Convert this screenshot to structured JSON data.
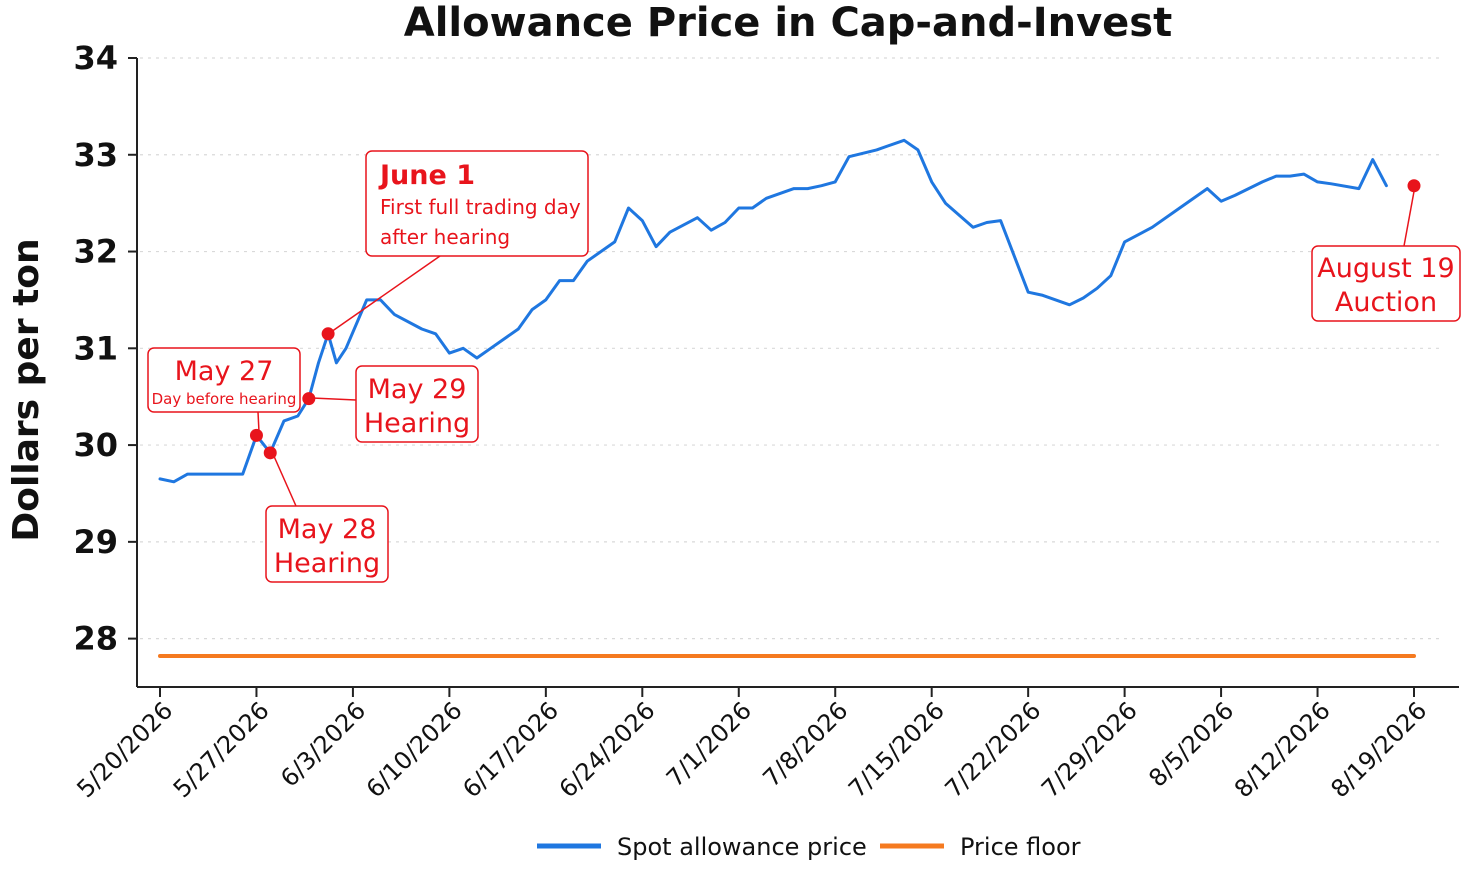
{
  "chart_data": {
    "type": "line",
    "title": "Allowance Price in Cap-and-Invest",
    "xlabel": "",
    "ylabel": "Dollars per ton",
    "ylim": [
      27.5,
      34.0
    ],
    "yticks": [
      28,
      29,
      30,
      31,
      32,
      33,
      34
    ],
    "xrange_days": [
      0,
      91
    ],
    "xticks": [
      {
        "label": "5/20/2026",
        "day": 0
      },
      {
        "label": "5/27/2026",
        "day": 7
      },
      {
        "label": "6/3/2026",
        "day": 14
      },
      {
        "label": "6/10/2026",
        "day": 21
      },
      {
        "label": "6/17/2026",
        "day": 28
      },
      {
        "label": "6/24/2026",
        "day": 35
      },
      {
        "label": "7/1/2026",
        "day": 42
      },
      {
        "label": "7/8/2026",
        "day": 49
      },
      {
        "label": "7/15/2026",
        "day": 56
      },
      {
        "label": "7/22/2026",
        "day": 63
      },
      {
        "label": "7/29/2026",
        "day": 70
      },
      {
        "label": "8/5/2026",
        "day": 77
      },
      {
        "label": "8/12/2026",
        "day": 84
      },
      {
        "label": "8/19/2026",
        "day": 91
      }
    ],
    "grid": "horizontal-dashed",
    "legend_position": "bottom",
    "series": [
      {
        "name": "Spot allowance price",
        "color": "#1f77e0",
        "points": [
          [
            0,
            29.65
          ],
          [
            1,
            29.62
          ],
          [
            2,
            29.7
          ],
          [
            3,
            29.7
          ],
          [
            4,
            29.7
          ],
          [
            5,
            29.7
          ],
          [
            6,
            29.7
          ],
          [
            7,
            30.1
          ],
          [
            8,
            29.92
          ],
          [
            9,
            30.25
          ],
          [
            10,
            30.3
          ],
          [
            10.8,
            30.48
          ],
          [
            11.5,
            30.85
          ],
          [
            12.2,
            31.15
          ],
          [
            12.8,
            30.85
          ],
          [
            13.5,
            31.0
          ],
          [
            15,
            31.5
          ],
          [
            16,
            31.5
          ],
          [
            17,
            31.35
          ],
          [
            19,
            31.2
          ],
          [
            20,
            31.15
          ],
          [
            21,
            30.95
          ],
          [
            22,
            31.0
          ],
          [
            23,
            30.9
          ],
          [
            24,
            31.0
          ],
          [
            26,
            31.2
          ],
          [
            27,
            31.4
          ],
          [
            28,
            31.5
          ],
          [
            29,
            31.7
          ],
          [
            30,
            31.7
          ],
          [
            31,
            31.9
          ],
          [
            33,
            32.1
          ],
          [
            34,
            32.45
          ],
          [
            35,
            32.32
          ],
          [
            36,
            32.05
          ],
          [
            37,
            32.2
          ],
          [
            39,
            32.35
          ],
          [
            40,
            32.22
          ],
          [
            41,
            32.3
          ],
          [
            42,
            32.45
          ],
          [
            43,
            32.45
          ],
          [
            44,
            32.55
          ],
          [
            46,
            32.65
          ],
          [
            47,
            32.65
          ],
          [
            48,
            32.68
          ],
          [
            49,
            32.72
          ],
          [
            50,
            32.98
          ],
          [
            52,
            33.05
          ],
          [
            54,
            33.15
          ],
          [
            55,
            33.05
          ],
          [
            56,
            32.72
          ],
          [
            57,
            32.5
          ],
          [
            59,
            32.25
          ],
          [
            60,
            32.3
          ],
          [
            61,
            32.32
          ],
          [
            63,
            31.58
          ],
          [
            64,
            31.55
          ],
          [
            65,
            31.5
          ],
          [
            66,
            31.45
          ],
          [
            67,
            31.52
          ],
          [
            68,
            31.62
          ],
          [
            69,
            31.75
          ],
          [
            70,
            32.1
          ],
          [
            72,
            32.25
          ],
          [
            74,
            32.45
          ],
          [
            76,
            32.65
          ],
          [
            77,
            32.52
          ],
          [
            78,
            32.58
          ],
          [
            80,
            32.72
          ],
          [
            81,
            32.78
          ],
          [
            82,
            32.78
          ],
          [
            83,
            32.8
          ],
          [
            84,
            32.72
          ],
          [
            85,
            32.7
          ],
          [
            87,
            32.65
          ],
          [
            88,
            32.95
          ],
          [
            89,
            32.68
          ]
        ]
      },
      {
        "name": "Price floor",
        "color": "#f57a20",
        "points": [
          [
            0,
            27.82
          ],
          [
            91,
            27.82
          ]
        ]
      }
    ],
    "annotations": [
      {
        "key": "may27",
        "day": 7,
        "value": 30.1,
        "title": "May 27",
        "subtitle": "Day before hearing"
      },
      {
        "key": "may28",
        "day": 8,
        "value": 29.92,
        "title": "May 28",
        "subtitle": "Hearing"
      },
      {
        "key": "may29",
        "day": 10.8,
        "value": 30.48,
        "title": "May 29",
        "subtitle": "Hearing"
      },
      {
        "key": "june1",
        "day": 12.2,
        "value": 31.15,
        "title": "June 1",
        "subtitle_line1": "First full trading day",
        "subtitle_line2": "after hearing"
      },
      {
        "key": "aug19",
        "day": 91,
        "value": 32.68,
        "title": "August 19",
        "subtitle": "Auction"
      }
    ],
    "marker_color": "#e8141c"
  }
}
